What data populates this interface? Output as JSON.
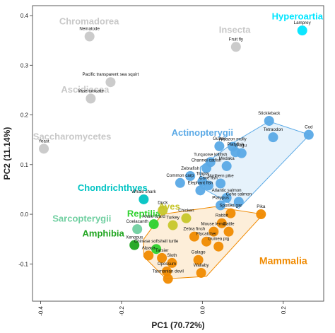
{
  "chart_data": {
    "type": "scatter",
    "xlabel": "PC1 (70.72%)",
    "ylabel": "PC2 (11.14%)",
    "xlim": [
      -0.42,
      0.3
    ],
    "ylim": [
      -0.175,
      0.42
    ],
    "xticks": [
      -0.4,
      -0.2,
      0.0,
      0.2
    ],
    "xtick_labels": [
      "-0.4",
      "-0.2",
      "0.0",
      "0.2"
    ],
    "yticks": [
      -0.1,
      0.0,
      0.1,
      0.2,
      0.3,
      0.4
    ],
    "ytick_labels": [
      "-0.1",
      "0.0",
      "0.1",
      "0.2",
      "0.3",
      "0.4"
    ],
    "groups": [
      {
        "name": "Chromadorea",
        "color": "#c8c8c8",
        "label_at": [
          -0.28,
          0.382
        ],
        "label_size": 13,
        "points": [
          {
            "name": "Nematode",
            "x": -0.279,
            "y": 0.358
          }
        ]
      },
      {
        "name": "Insecta",
        "color": "#c8c8c8",
        "label_at": [
          0.08,
          0.365
        ],
        "label_size": 13,
        "points": [
          {
            "name": "Fruit fly",
            "x": 0.083,
            "y": 0.337
          }
        ]
      },
      {
        "name": "Hyperoartia",
        "color": "#00e5ff",
        "label_at": [
          0.235,
          0.392
        ],
        "label_size": 13,
        "points": [
          {
            "name": "Lamprey",
            "x": 0.247,
            "y": 0.37
          }
        ]
      },
      {
        "name": "Ascidiacea",
        "color": "#c8c8c8",
        "label_at": [
          -0.29,
          0.245
        ],
        "label_size": 13,
        "points": [
          {
            "name": "Pacific transparent sea squirt",
            "x": -0.227,
            "y": 0.266
          },
          {
            "name": "Vase tunicate",
            "x": -0.276,
            "y": 0.233
          }
        ]
      },
      {
        "name": "Saccharomycetes",
        "color": "#c8c8c8",
        "label_at": [
          -0.322,
          0.15
        ],
        "label_size": 13,
        "points": [
          {
            "name": "Yeast",
            "x": -0.392,
            "y": 0.132
          }
        ]
      },
      {
        "name": "Actinopterygii",
        "color": "#5aa9e6",
        "label_at": [
          0.0,
          0.158
        ],
        "label_size": 13,
        "hull": true,
        "hull_points": [
          [
            -0.005,
            0.095
          ],
          [
            0.08,
            0.146
          ],
          [
            0.165,
            0.187
          ],
          [
            0.265,
            0.16
          ],
          [
            0.09,
            0.012
          ],
          [
            -0.005,
            0.055
          ]
        ],
        "points": [
          {
            "name": "Stickleback",
            "x": 0.165,
            "y": 0.188
          },
          {
            "name": "Tetraodon",
            "x": 0.175,
            "y": 0.155
          },
          {
            "name": "Cod",
            "x": 0.263,
            "y": 0.16
          },
          {
            "name": "Guppy",
            "x": 0.042,
            "y": 0.137
          },
          {
            "name": "Amazon molly",
            "x": 0.075,
            "y": 0.136
          },
          {
            "name": "Platyfish",
            "x": 0.082,
            "y": 0.125
          },
          {
            "name": "Fugu",
            "x": 0.097,
            "y": 0.123
          },
          {
            "name": "Turquoise killifish",
            "x": 0.02,
            "y": 0.105
          },
          {
            "name": "Medaka",
            "x": 0.06,
            "y": 0.097
          },
          {
            "name": "Channel catfish",
            "x": 0.01,
            "y": 0.093
          },
          {
            "name": "Zebrafish",
            "x": -0.03,
            "y": 0.077
          },
          {
            "name": "Tilapia",
            "x": 0.0,
            "y": 0.066
          },
          {
            "name": "Common carp",
            "x": -0.055,
            "y": 0.063
          },
          {
            "name": "Northern pike",
            "x": 0.045,
            "y": 0.062
          },
          {
            "name": "Cave fish",
            "x": 0.015,
            "y": 0.058
          },
          {
            "name": "Elephant fish",
            "x": -0.005,
            "y": 0.048
          },
          {
            "name": "Atlantic salmon",
            "x": 0.06,
            "y": 0.033
          },
          {
            "name": "Coho salmon",
            "x": 0.09,
            "y": 0.025
          },
          {
            "name": "Platypus",
            "x": 0.045,
            "y": 0.018
          }
        ]
      },
      {
        "name": "Chondrichthyes",
        "color": "#00c3c3",
        "label_at": [
          -0.222,
          0.047
        ],
        "label_size": 13,
        "points": [
          {
            "name": "Whale shark",
            "x": -0.145,
            "y": 0.03
          }
        ]
      },
      {
        "name": "Aves",
        "color": "#c7c62a",
        "label_at": [
          -0.082,
          0.009
        ],
        "label_size": 13,
        "points": [
          {
            "name": "Duck",
            "x": -0.098,
            "y": 0.008
          },
          {
            "name": "Chicken",
            "x": -0.04,
            "y": -0.008
          },
          {
            "name": "Turkey",
            "x": -0.073,
            "y": -0.022
          }
        ]
      },
      {
        "name": "Reptilia",
        "color": "#2dd12d",
        "label_at": [
          -0.145,
          -0.005
        ],
        "label_size": 13,
        "points": [
          {
            "name": "Anole lizard",
            "x": -0.12,
            "y": -0.02
          },
          {
            "name": "Chinese softshell turtle",
            "x": -0.114,
            "y": -0.07
          }
        ]
      },
      {
        "name": "Sarcopterygii",
        "color": "#6fcfa0",
        "label_at": [
          -0.298,
          -0.015
        ],
        "label_size": 13,
        "points": [
          {
            "name": "Coelacanth",
            "x": -0.161,
            "y": -0.03
          }
        ]
      },
      {
        "name": "Amphibia",
        "color": "#1fa51f",
        "label_at": [
          -0.245,
          -0.045
        ],
        "label_size": 13,
        "points": [
          {
            "name": "Xenopus",
            "x": -0.168,
            "y": -0.062
          }
        ]
      },
      {
        "name": "Mammalia",
        "color": "#f08a00",
        "label_at": [
          0.2,
          -0.1
        ],
        "label_size": 14,
        "hull": true,
        "hull_points": [
          [
            -0.145,
            -0.05
          ],
          [
            -0.1,
            -0.0
          ],
          [
            0.03,
            0.015
          ],
          [
            0.15,
            0.0
          ],
          [
            0.01,
            -0.125
          ],
          [
            -0.09,
            -0.13
          ],
          [
            -0.145,
            -0.085
          ]
        ],
        "points": [
          {
            "name": "Spotted gar",
            "x": 0.07,
            "y": 0.002
          },
          {
            "name": "Pika",
            "x": 0.145,
            "y": 0.0
          },
          {
            "name": "Rabbit",
            "x": 0.048,
            "y": -0.018
          },
          {
            "name": "Mouse lemur",
            "x": 0.028,
            "y": -0.035
          },
          {
            "name": "Cattle",
            "x": 0.065,
            "y": -0.035
          },
          {
            "name": "Zebra finch",
            "x": -0.02,
            "y": -0.045
          },
          {
            "name": "Flycatcher",
            "x": 0.01,
            "y": -0.055
          },
          {
            "name": "Guinea pig",
            "x": 0.04,
            "y": -0.065
          },
          {
            "name": "Alpaca",
            "x": -0.133,
            "y": -0.083
          },
          {
            "name": "Tarsier",
            "x": -0.1,
            "y": -0.088
          },
          {
            "name": "Galago",
            "x": -0.01,
            "y": -0.092
          },
          {
            "name": "Sloth",
            "x": -0.075,
            "y": -0.098
          },
          {
            "name": "Opossum",
            "x": -0.088,
            "y": -0.115
          },
          {
            "name": "Wallaby",
            "x": -0.003,
            "y": -0.118
          },
          {
            "name": "Tasmanian devil",
            "x": -0.085,
            "y": -0.13
          }
        ]
      }
    ]
  }
}
